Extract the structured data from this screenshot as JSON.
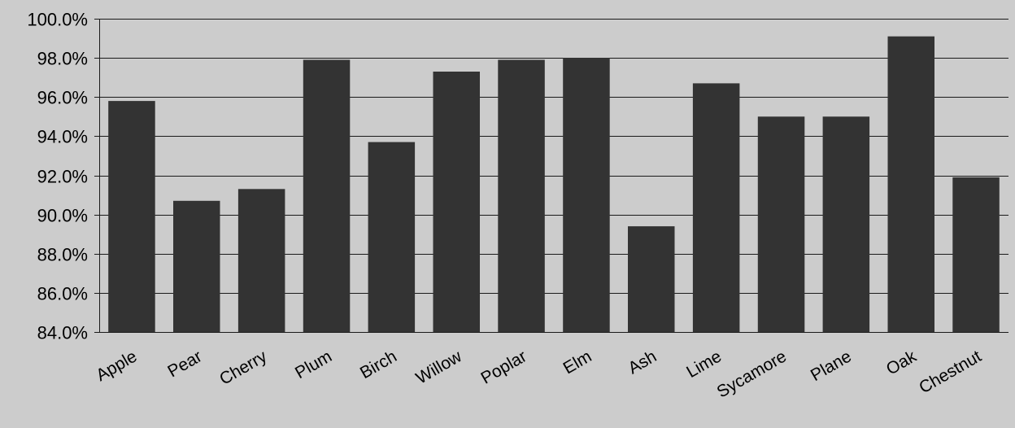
{
  "chart_data": {
    "type": "bar",
    "categories": [
      "Apple",
      "Pear",
      "Cherry",
      "Plum",
      "Birch",
      "Willow",
      "Poplar",
      "Elm",
      "Ash",
      "Lime",
      "Sycamore",
      "Plane",
      "Oak",
      "Chestnut"
    ],
    "values": [
      95.8,
      90.7,
      91.3,
      97.9,
      93.7,
      97.3,
      97.9,
      98.0,
      89.4,
      96.7,
      95.0,
      95.0,
      99.1,
      91.9
    ],
    "y_ticks": [
      "84.0%",
      "86.0%",
      "88.0%",
      "90.0%",
      "92.0%",
      "94.0%",
      "96.0%",
      "98.0%",
      "100.0%"
    ],
    "ylim": [
      84,
      100
    ],
    "y_step": 2,
    "grid": true,
    "legend": "none",
    "title": "",
    "xlabel": "",
    "ylabel": ""
  },
  "colors": {
    "background": "#cccccc",
    "bar": "#333333",
    "gridline": "#1a1a1a",
    "text": "#000000"
  }
}
